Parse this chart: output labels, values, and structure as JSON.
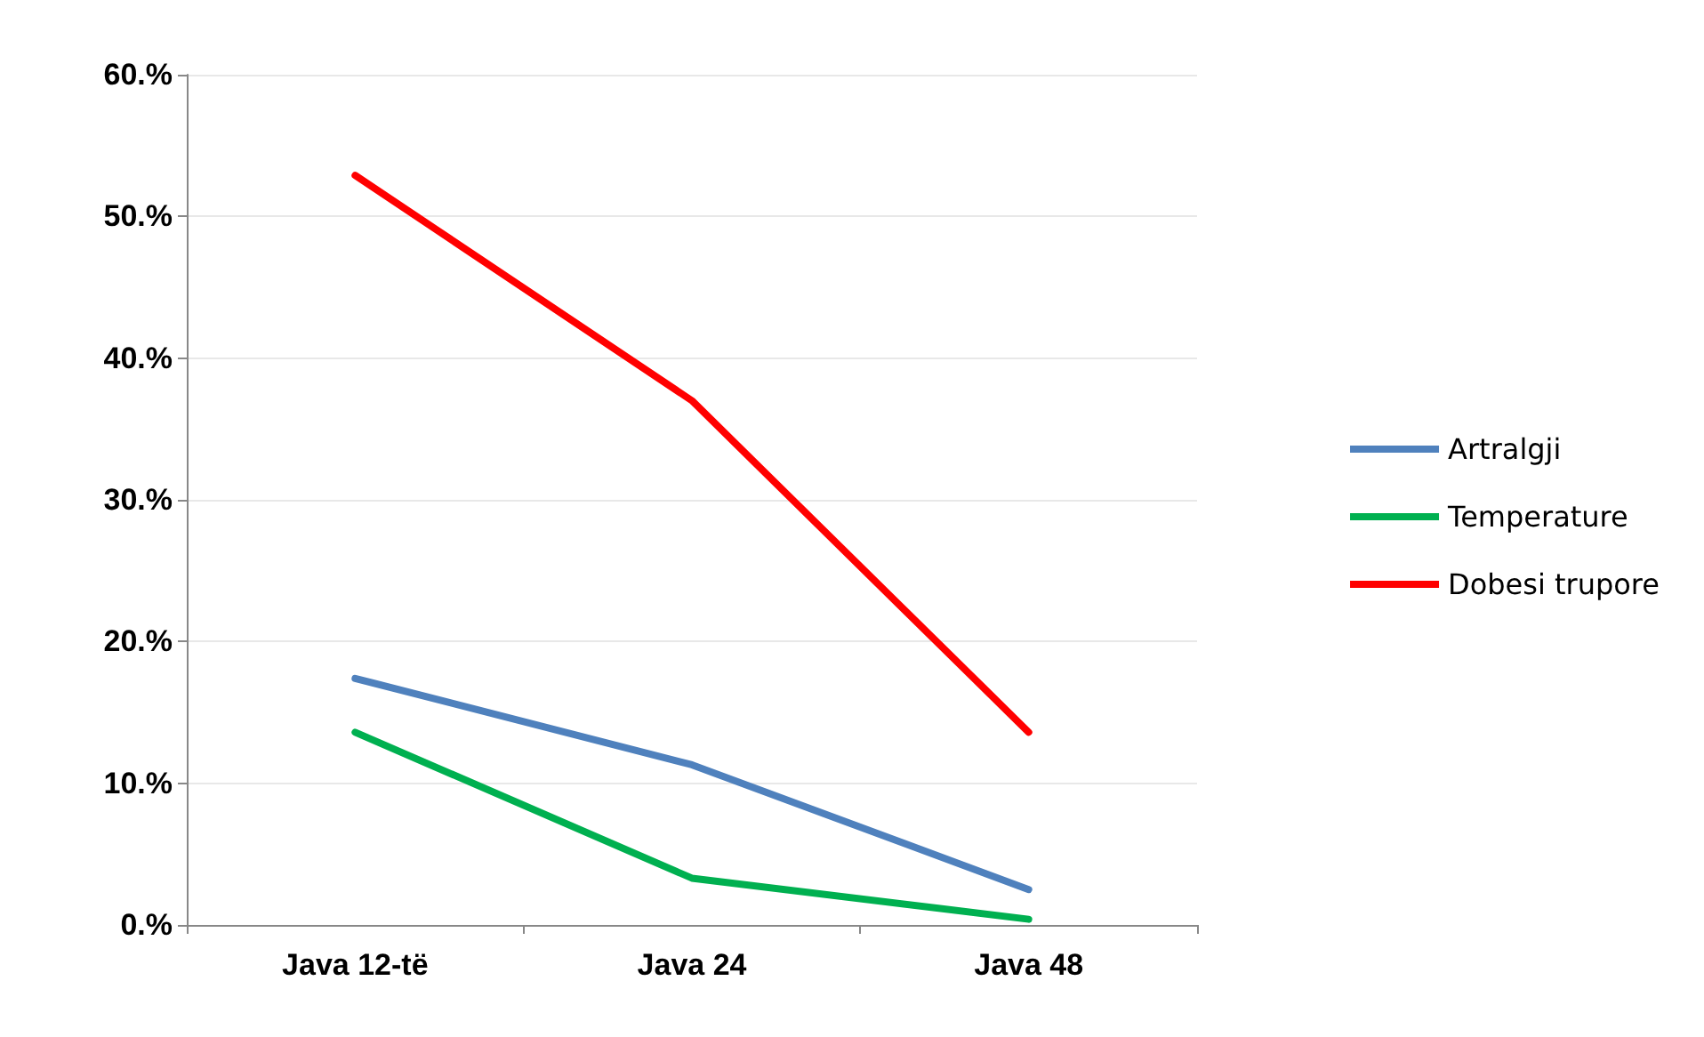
{
  "chart_data": {
    "type": "line",
    "categories": [
      "Java 12-të",
      "Java 24",
      "Java 48"
    ],
    "series": [
      {
        "name": "Artralgji",
        "color": "#4f81bd",
        "values": [
          17.4,
          11.3,
          2.5
        ]
      },
      {
        "name": "Temperature",
        "color": "#00b050",
        "values": [
          13.6,
          3.3,
          0.4
        ]
      },
      {
        "name": "Dobesi trupore",
        "color": "#ff0000",
        "values": [
          52.9,
          37.0,
          13.6
        ]
      }
    ],
    "ylim": [
      0,
      60
    ],
    "yticks": [
      {
        "value": 0,
        "label": "0.%"
      },
      {
        "value": 10,
        "label": "10.%"
      },
      {
        "value": 20,
        "label": "20.%"
      },
      {
        "value": 30,
        "label": "30.%"
      },
      {
        "value": 40,
        "label": "40.%"
      },
      {
        "value": 50,
        "label": "50.%"
      },
      {
        "value": 60,
        "label": "60.%"
      }
    ],
    "grid": "y",
    "legend": "right",
    "marker": "none",
    "line_style": "solid"
  }
}
